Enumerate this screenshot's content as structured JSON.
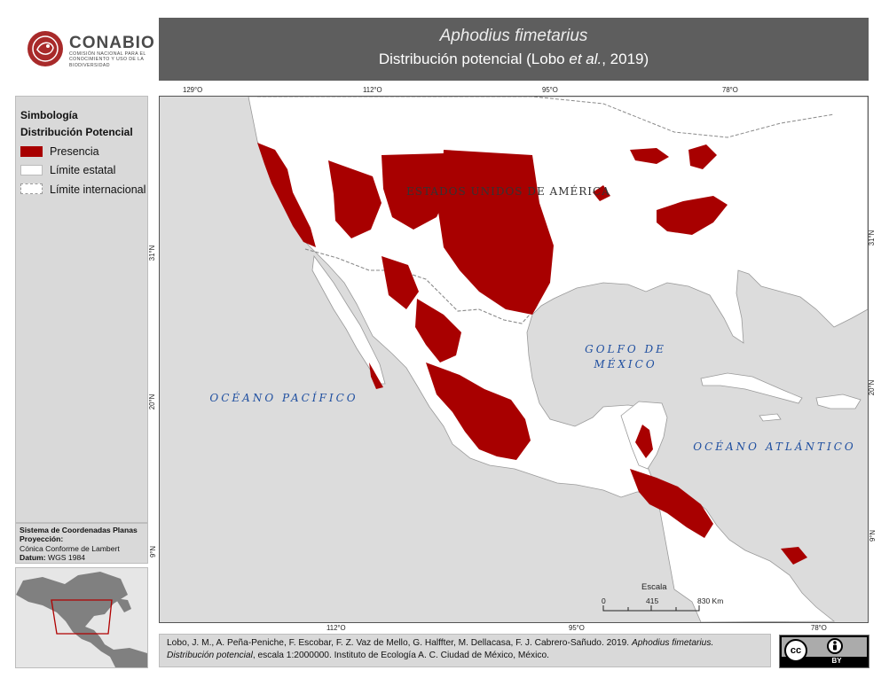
{
  "branding": {
    "name": "CONABIO",
    "subtitle": "Comisión Nacional para el Conocimiento y Uso de la Biodiversidad"
  },
  "header": {
    "species": "Aphodius fimetarius",
    "subtitle_prefix": "Distribución potencial (Lobo ",
    "subtitle_em": "et al.",
    "subtitle_suffix": ", 2019)"
  },
  "legend": {
    "title": "Simbología",
    "section": "Distribución Potencial",
    "items": [
      {
        "label": "Presencia",
        "color": "#a80000"
      },
      {
        "label": "Límite estatal",
        "color": "#ffffff"
      },
      {
        "label": "Límite internacional",
        "color": "#ffffff"
      }
    ]
  },
  "coordinates": {
    "title": "Sistema de Coordenadas Planas",
    "projection_label": "Proyección:",
    "projection_value": "Cónica Conforme de Lambert",
    "datum_label": "Datum:",
    "datum_value": "WGS 1984"
  },
  "map": {
    "colors": {
      "land": "#ffffff",
      "water": "#dcdcdc",
      "presence": "#a80000",
      "water_label": "#1f4fa0"
    },
    "ticks_top": [
      "129°O",
      "112°O",
      "95°O",
      "78°O"
    ],
    "ticks_bottom": [
      "112°O",
      "95°O",
      "78°O"
    ],
    "ticks_left": [
      "31°N",
      "20°N",
      "9°N"
    ],
    "ticks_right": [
      "31°N",
      "20°N",
      "9°N"
    ],
    "labels": {
      "usa": "ESTADOS UNIDOS DE AMÉRICA",
      "pacific": "OCÉANO PACÍFICO",
      "gulf_line1": "GOLFO DE",
      "gulf_line2": "MÉXICO",
      "atlantic": "OCÉANO ATLÁNTICO"
    },
    "scale": {
      "title": "Escala",
      "labels": [
        "0",
        "415",
        "830 Km"
      ]
    }
  },
  "citation": {
    "authors": "Lobo, J. M., A. Peña-Peniche, F. Escobar, F. Z. Vaz de Mello, G. Halffter, M. Dellacasa, F. J. Cabrero-Sañudo. 2019. ",
    "title_italic": "Aphodius fimetarius.",
    "line2_italic": "Distribución potencial",
    "line2_rest": ", escala 1:2000000. Instituto de Ecología A. C. Ciudad de México, México."
  },
  "license": {
    "cc": "cc",
    "by": "BY"
  }
}
